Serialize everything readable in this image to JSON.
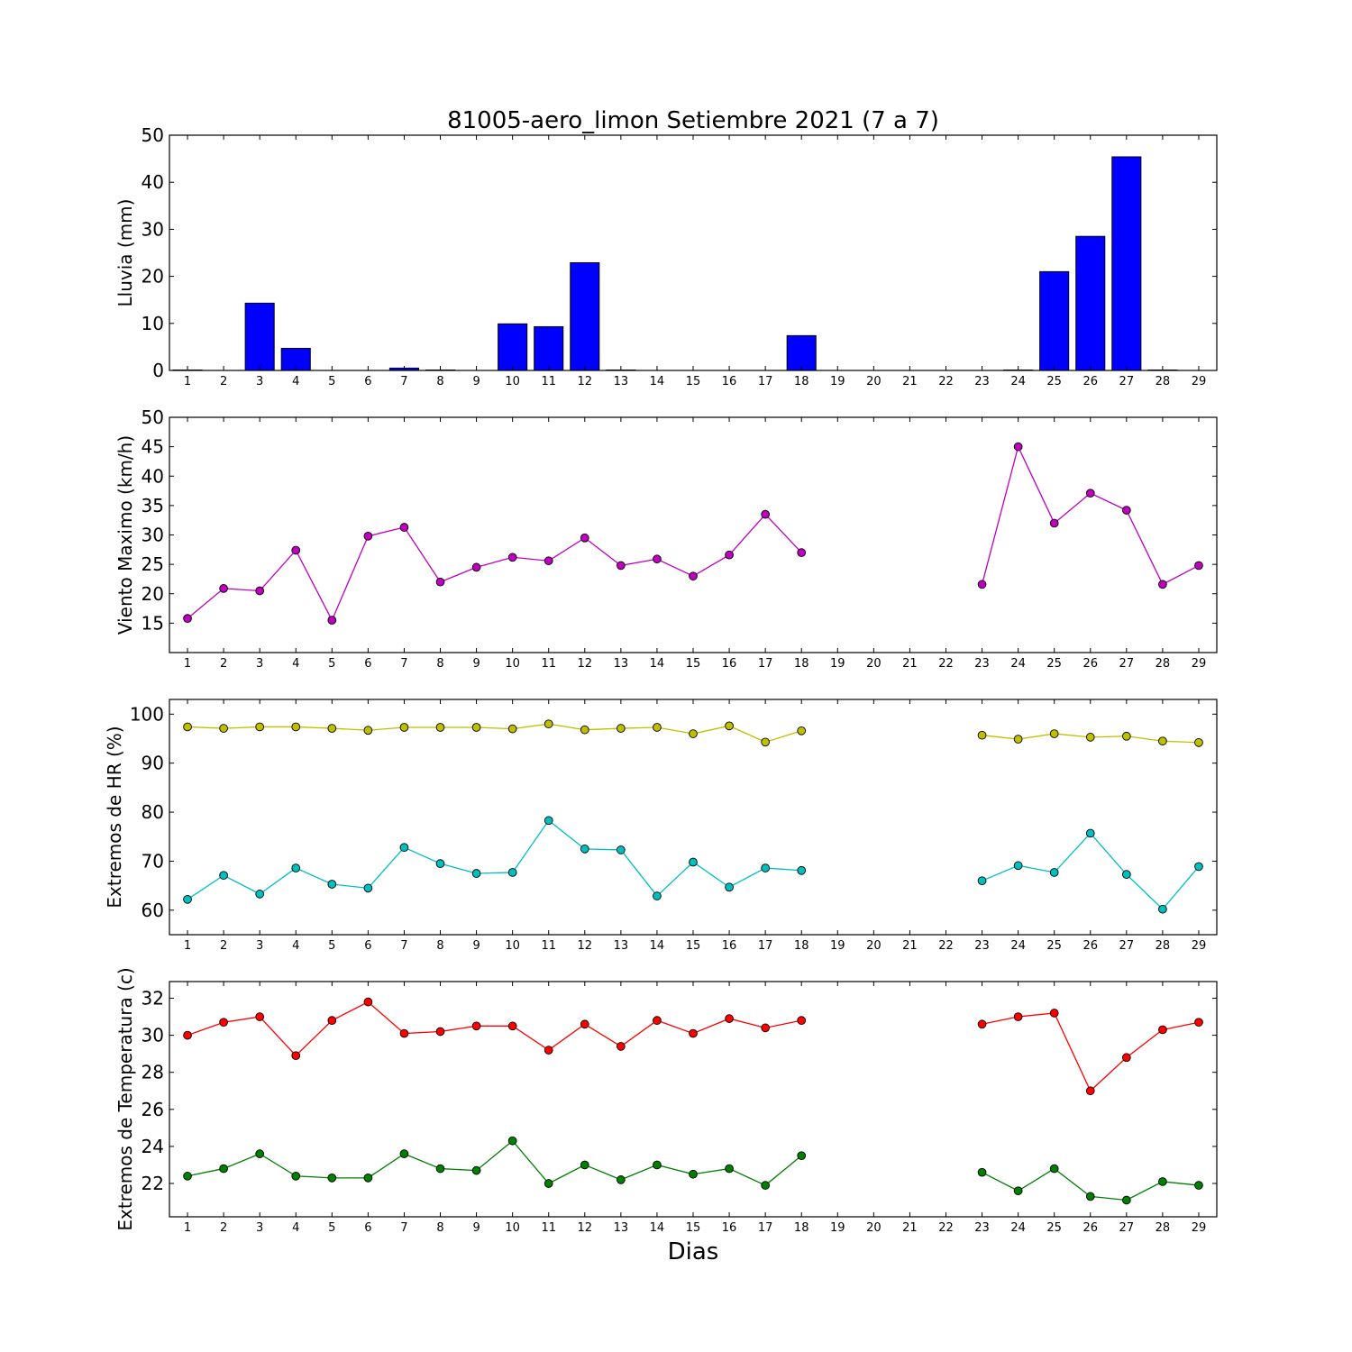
{
  "title": "81005-aero_limon Setiembre 2021  (7 a 7)",
  "xlabel": "Dias",
  "chart_data": [
    {
      "type": "bar",
      "ylabel": "Lluvia (mm)",
      "ylim": [
        0,
        50
      ],
      "yticks": [
        0,
        10,
        20,
        30,
        40,
        50
      ],
      "xlim": [
        0.5,
        29.5
      ],
      "x": [
        1,
        2,
        3,
        4,
        5,
        6,
        7,
        8,
        9,
        10,
        11,
        12,
        13,
        14,
        15,
        16,
        17,
        18,
        19,
        20,
        21,
        22,
        23,
        24,
        25,
        26,
        27,
        28,
        29
      ],
      "values": [
        0.1,
        0,
        14.3,
        4.7,
        0,
        0,
        0.5,
        0.1,
        0,
        9.9,
        9.3,
        22.9,
        0.1,
        0,
        0,
        0,
        0,
        7.4,
        0,
        0,
        0,
        0,
        0,
        0.1,
        21,
        28.5,
        45.4,
        0.1,
        0
      ],
      "color": "#0000ff"
    },
    {
      "type": "line",
      "ylabel": "Viento Maximo (km/h)",
      "ylim": [
        10,
        50
      ],
      "yticks": [
        15,
        20,
        25,
        30,
        35,
        40,
        45,
        50
      ],
      "xlim": [
        0.5,
        29.5
      ],
      "x": [
        1,
        2,
        3,
        4,
        5,
        6,
        7,
        8,
        9,
        10,
        11,
        12,
        13,
        14,
        15,
        16,
        17,
        18,
        19,
        20,
        21,
        22,
        23,
        24,
        25,
        26,
        27,
        28,
        29
      ],
      "series": [
        {
          "color": "#bf00bf",
          "values": [
            15.8,
            20.9,
            20.5,
            27.4,
            15.5,
            29.8,
            31.3,
            22,
            24.5,
            26.2,
            25.6,
            29.5,
            24.8,
            25.9,
            23,
            26.6,
            33.5,
            27,
            null,
            null,
            null,
            null,
            21.6,
            45,
            32,
            37.1,
            34.2,
            21.6,
            24.8
          ]
        }
      ]
    },
    {
      "type": "line",
      "ylabel": "Extremos de HR (%)",
      "ylim": [
        55,
        103
      ],
      "yticks": [
        60,
        70,
        80,
        90,
        100
      ],
      "xlim": [
        0.5,
        29.5
      ],
      "x": [
        1,
        2,
        3,
        4,
        5,
        6,
        7,
        8,
        9,
        10,
        11,
        12,
        13,
        14,
        15,
        16,
        17,
        18,
        19,
        20,
        21,
        22,
        23,
        24,
        25,
        26,
        27,
        28,
        29
      ],
      "series": [
        {
          "color": "#bfbf00",
          "values": [
            97.4,
            97.1,
            97.4,
            97.4,
            97.1,
            96.7,
            97.3,
            97.3,
            97.3,
            97,
            98,
            96.8,
            97.1,
            97.3,
            96,
            97.6,
            94.3,
            96.6,
            null,
            null,
            null,
            null,
            95.7,
            94.9,
            96,
            95.3,
            95.5,
            94.5,
            94.2
          ]
        },
        {
          "color": "#00bfbf",
          "values": [
            62.2,
            67.1,
            63.3,
            68.6,
            65.3,
            64.5,
            72.8,
            69.5,
            67.5,
            67.7,
            78.3,
            72.5,
            72.3,
            62.9,
            69.8,
            64.7,
            68.6,
            68.1,
            null,
            null,
            null,
            null,
            66,
            69.1,
            67.7,
            75.7,
            67.3,
            60.2,
            68.9
          ]
        }
      ]
    },
    {
      "type": "line",
      "ylabel": "Extremos de Temperatura (c)",
      "ylim": [
        20.2,
        32.9
      ],
      "yticks": [
        22,
        24,
        26,
        28,
        30,
        32
      ],
      "xlim": [
        0.5,
        29.5
      ],
      "x": [
        1,
        2,
        3,
        4,
        5,
        6,
        7,
        8,
        9,
        10,
        11,
        12,
        13,
        14,
        15,
        16,
        17,
        18,
        19,
        20,
        21,
        22,
        23,
        24,
        25,
        26,
        27,
        28,
        29
      ],
      "series": [
        {
          "color": "#ff0000",
          "values": [
            30,
            30.7,
            31,
            28.9,
            30.8,
            31.8,
            30.1,
            30.2,
            30.5,
            30.5,
            29.2,
            30.6,
            29.4,
            30.8,
            30.1,
            30.9,
            30.4,
            30.8,
            null,
            null,
            null,
            null,
            30.6,
            31,
            31.2,
            27,
            28.8,
            30.3,
            30.7
          ]
        },
        {
          "color": "#007f00",
          "values": [
            22.4,
            22.8,
            23.6,
            22.4,
            22.3,
            22.3,
            23.6,
            22.8,
            22.7,
            24.3,
            22,
            23,
            22.2,
            23,
            22.5,
            22.8,
            21.9,
            23.5,
            null,
            null,
            null,
            null,
            22.6,
            21.6,
            22.8,
            21.3,
            21.1,
            22.1,
            21.9
          ]
        }
      ]
    }
  ]
}
